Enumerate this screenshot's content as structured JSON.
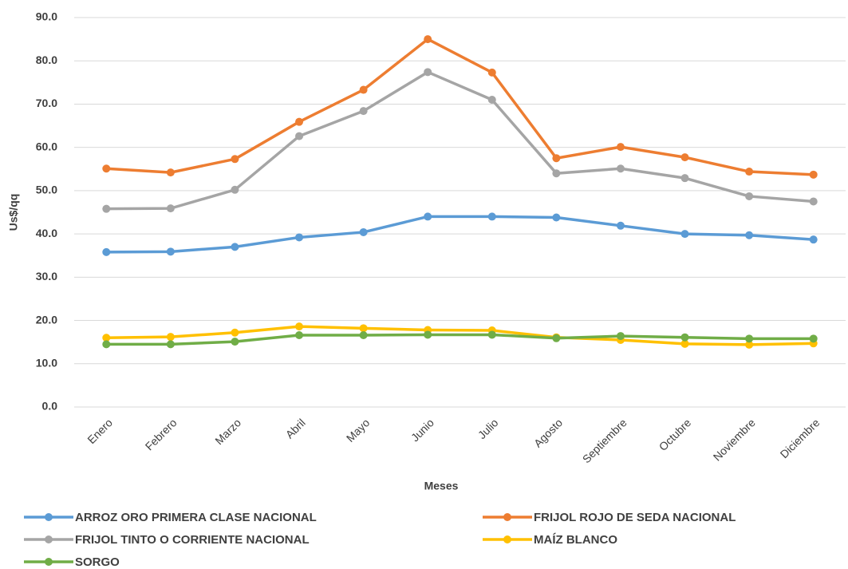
{
  "chart_data": {
    "type": "line",
    "xlabel": "Meses",
    "ylabel": "Us$/qq",
    "categories": [
      "Enero",
      "Febrero",
      "Marzo",
      "Abril",
      "Mayo",
      "Junio",
      "Julio",
      "Agosto",
      "Septiembre",
      "Octubre",
      "Noviembre",
      "Diciembre"
    ],
    "series": [
      {
        "name": "ARROZ ORO PRIMERA CLASE NACIONAL",
        "color": "#5b9bd5",
        "values": [
          35.8,
          35.9,
          37.0,
          39.2,
          40.4,
          44.0,
          44.0,
          43.8,
          41.9,
          40.0,
          39.7,
          38.7
        ]
      },
      {
        "name": "FRIJOL  ROJO DE SEDA NACIONAL",
        "color": "#ed7d31",
        "values": [
          55.1,
          54.2,
          57.3,
          65.9,
          73.3,
          85.0,
          77.3,
          57.5,
          60.1,
          57.7,
          54.4,
          53.7
        ]
      },
      {
        "name": "FRIJOL  TINTO O CORRIENTE NACIONAL",
        "color": "#a5a5a5",
        "values": [
          45.8,
          45.9,
          50.2,
          62.6,
          68.4,
          77.4,
          71.0,
          54.0,
          55.1,
          52.9,
          48.7,
          47.5
        ]
      },
      {
        "name": "MAÍZ BLANCO",
        "color": "#ffc000",
        "values": [
          16.0,
          16.2,
          17.2,
          18.6,
          18.2,
          17.8,
          17.7,
          16.1,
          15.5,
          14.6,
          14.4,
          14.7
        ]
      },
      {
        "name": "SORGO",
        "color": "#70ad47",
        "values": [
          14.5,
          14.5,
          15.1,
          16.6,
          16.6,
          16.7,
          16.7,
          15.9,
          16.4,
          16.1,
          15.8,
          15.8
        ]
      }
    ],
    "ylim": [
      0,
      90
    ],
    "yticks": [
      {
        "value": 0,
        "label": "0.0"
      },
      {
        "value": 10,
        "label": "10.0"
      },
      {
        "value": 20,
        "label": "20.0"
      },
      {
        "value": 30,
        "label": "30.0"
      },
      {
        "value": 40,
        "label": "40.0"
      },
      {
        "value": 50,
        "label": "50.0"
      },
      {
        "value": 60,
        "label": "60.0"
      },
      {
        "value": 70,
        "label": "70.0"
      },
      {
        "value": 80,
        "label": "80.0"
      },
      {
        "value": 90,
        "label": "90.0"
      }
    ],
    "grid": true,
    "legend": "bottom"
  }
}
